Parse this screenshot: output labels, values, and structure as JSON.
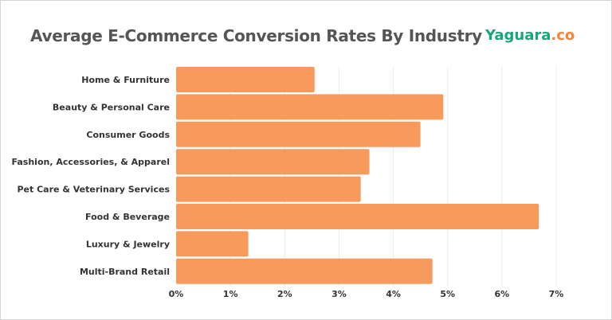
{
  "chart_data": {
    "type": "bar",
    "orientation": "horizontal",
    "title": "Average E-Commerce Conversion Rates By Industry",
    "categories": [
      "Home & Furniture",
      "Beauty & Personal Care",
      "Consumer Goods",
      "Fashion, Accessories, & Apparel",
      "Pet Care & Veterinary Services",
      "Food & Beverage",
      "Luxury & Jewelry",
      "Multi-Brand Retail"
    ],
    "values": [
      2.55,
      4.92,
      4.5,
      3.56,
      3.4,
      6.68,
      1.33,
      4.72
    ],
    "xlim": [
      0,
      7
    ],
    "xticks": [
      "0%",
      "1%",
      "2%",
      "3%",
      "4%",
      "5%",
      "6%",
      "7%"
    ],
    "xlabel": "",
    "ylabel": "",
    "grid": true,
    "bar_color": "#f79a5c"
  },
  "logo": {
    "main": "Yaguara",
    "suffix": ".co",
    "main_color": "#1aa57a",
    "suffix_color": "#f7843a"
  }
}
